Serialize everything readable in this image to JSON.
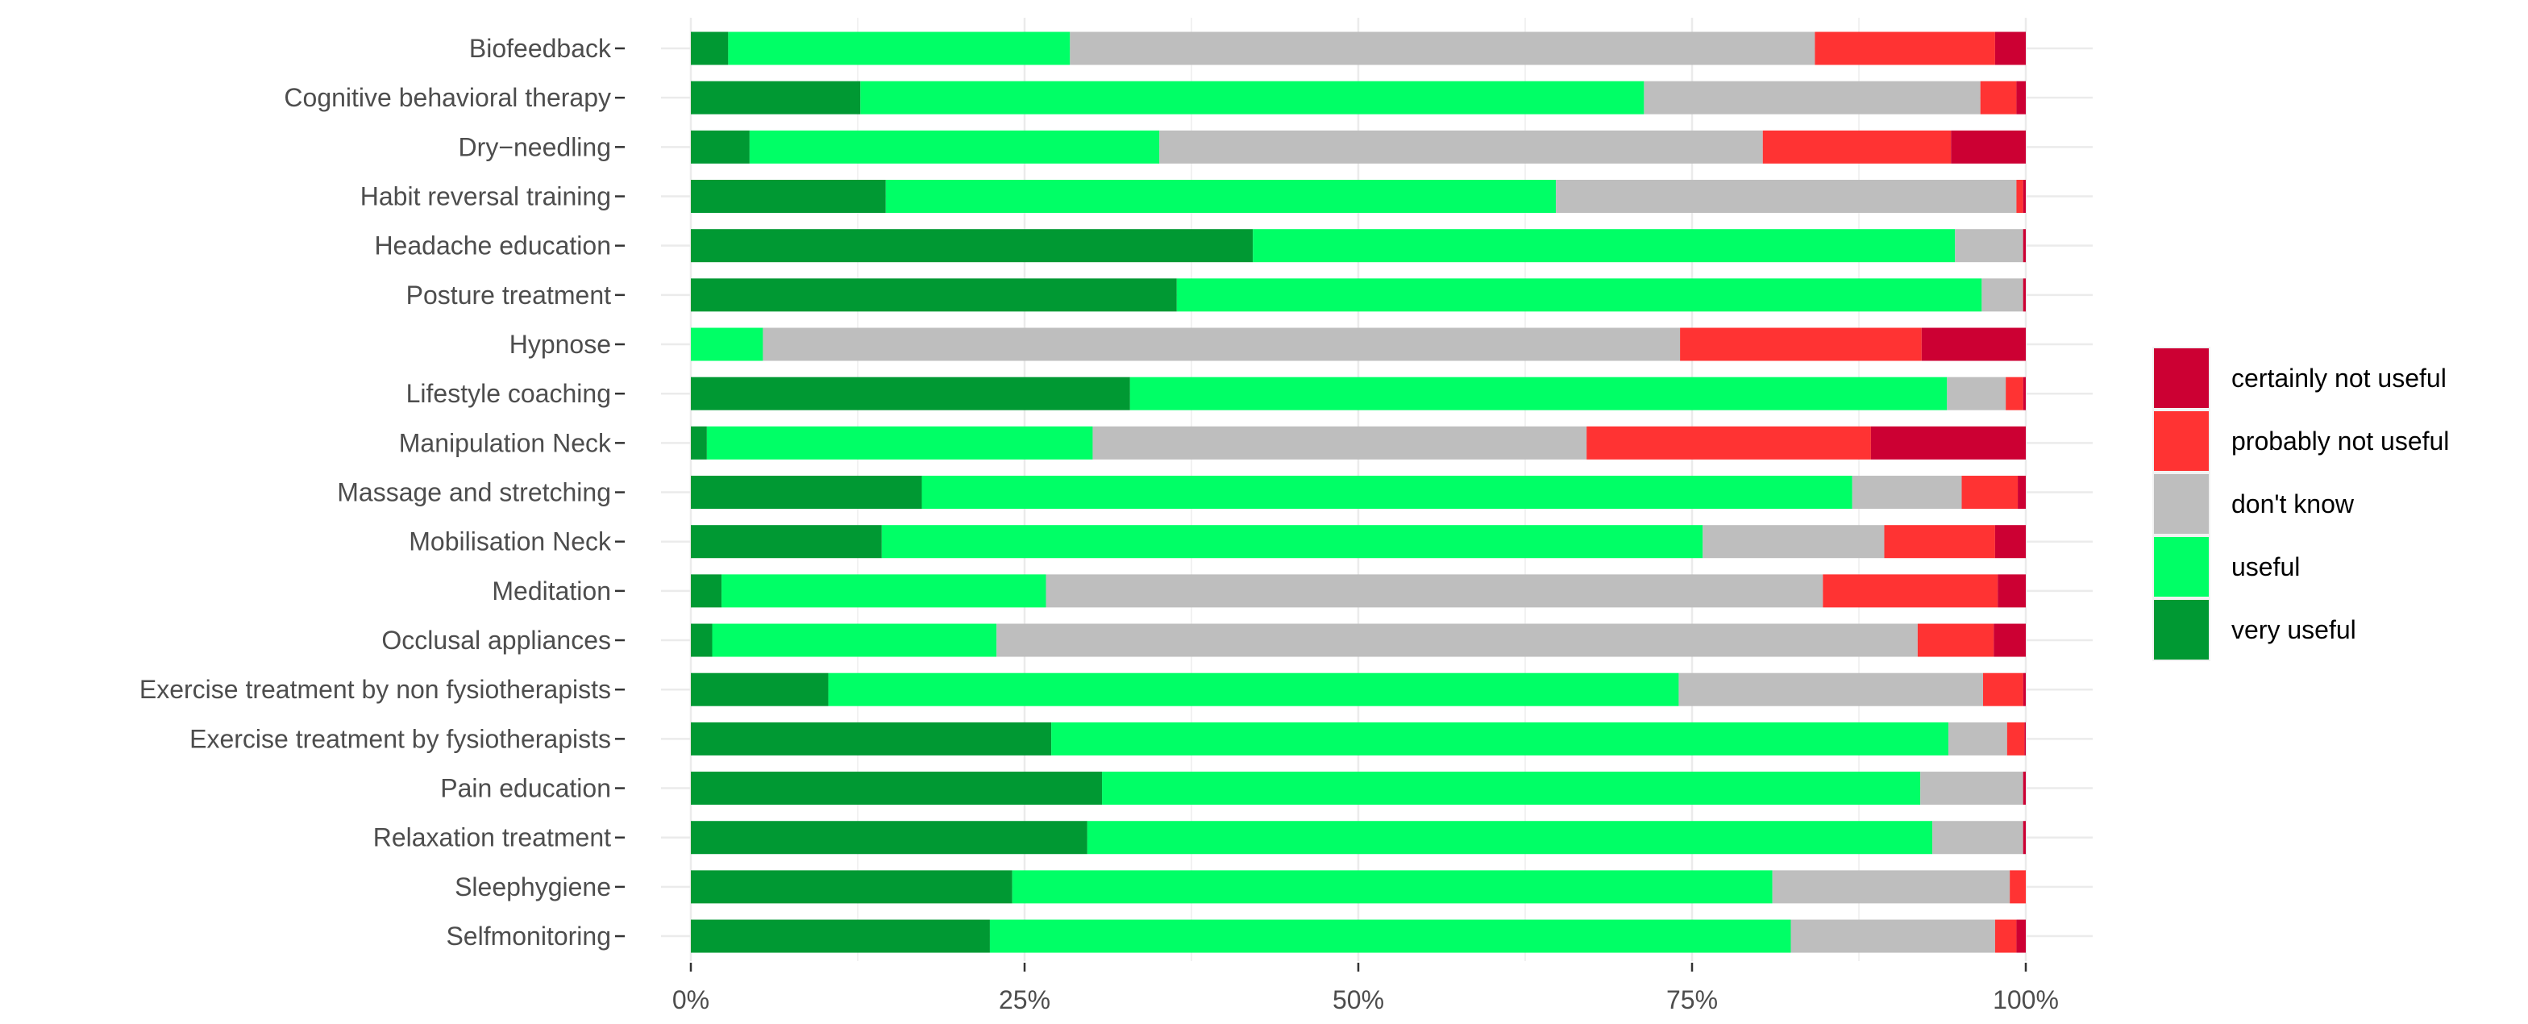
{
  "chart_data": {
    "type": "bar",
    "orientation": "horizontal",
    "stacked": "percent",
    "categories": [
      "Biofeedback",
      "Cognitive behavioral therapy",
      "Dry−needling",
      "Habit reversal training",
      "Headache education",
      "Posture treatment",
      "Hypnose",
      "Lifestyle coaching",
      "Manipulation Neck",
      "Massage and stretching",
      "Mobilisation Neck",
      "Meditation",
      "Occlusal appliances",
      "Exercise treatment by non fysiotherapists",
      "Exercise treatment by fysiotherapists",
      "Pain education",
      "Relaxation treatment",
      "Sleephygiene",
      "Selfmonitoring"
    ],
    "series": [
      {
        "name": "very useful",
        "color": "#009933",
        "values": [
          2.8,
          12.7,
          4.4,
          14.6,
          42.1,
          36.4,
          0,
          32.9,
          1.2,
          17.3,
          14.3,
          2.3,
          1.6,
          10.3,
          27.0,
          30.8,
          29.7,
          24.1,
          22.4
        ]
      },
      {
        "name": "useful",
        "color": "#00ff66",
        "values": [
          25.6,
          58.7,
          30.7,
          50.2,
          52.6,
          60.3,
          5.4,
          61.2,
          28.9,
          69.7,
          61.5,
          24.3,
          21.3,
          63.7,
          67.2,
          61.3,
          63.3,
          57.0,
          60.0
        ]
      },
      {
        "name": "don't know",
        "color": "#bebebe",
        "values": [
          55.8,
          25.2,
          45.2,
          34.5,
          5.1,
          3.1,
          68.7,
          4.4,
          37.0,
          8.2,
          13.6,
          58.2,
          69.0,
          22.8,
          4.4,
          7.7,
          6.8,
          17.8,
          15.3
        ]
      },
      {
        "name": "probably not useful",
        "color": "#ff3333",
        "values": [
          13.5,
          2.7,
          14.1,
          0.5,
          0,
          0,
          18.1,
          1.3,
          21.3,
          4.2,
          8.3,
          13.1,
          5.7,
          3.0,
          1.3,
          0,
          0,
          1.2,
          1.6
        ]
      },
      {
        "name": "certainly not useful",
        "color": "#cc0033",
        "values": [
          2.3,
          0.7,
          5.6,
          0.2,
          0.2,
          0.2,
          7.8,
          0.2,
          11.6,
          0.6,
          2.3,
          2.1,
          2.4,
          0.2,
          0.1,
          0.2,
          0.2,
          0,
          0.7
        ]
      }
    ],
    "xlim": [
      0,
      100
    ],
    "xticks": [
      0,
      25,
      50,
      75,
      100
    ],
    "xtick_labels": [
      "0%",
      "25%",
      "50%",
      "75%",
      "100%"
    ],
    "legend": [
      "certainly not useful",
      "probably not useful",
      "don't know",
      "useful",
      "very useful"
    ],
    "legend_position": "right",
    "grid": true,
    "title": "",
    "xlabel": "",
    "ylabel": ""
  }
}
